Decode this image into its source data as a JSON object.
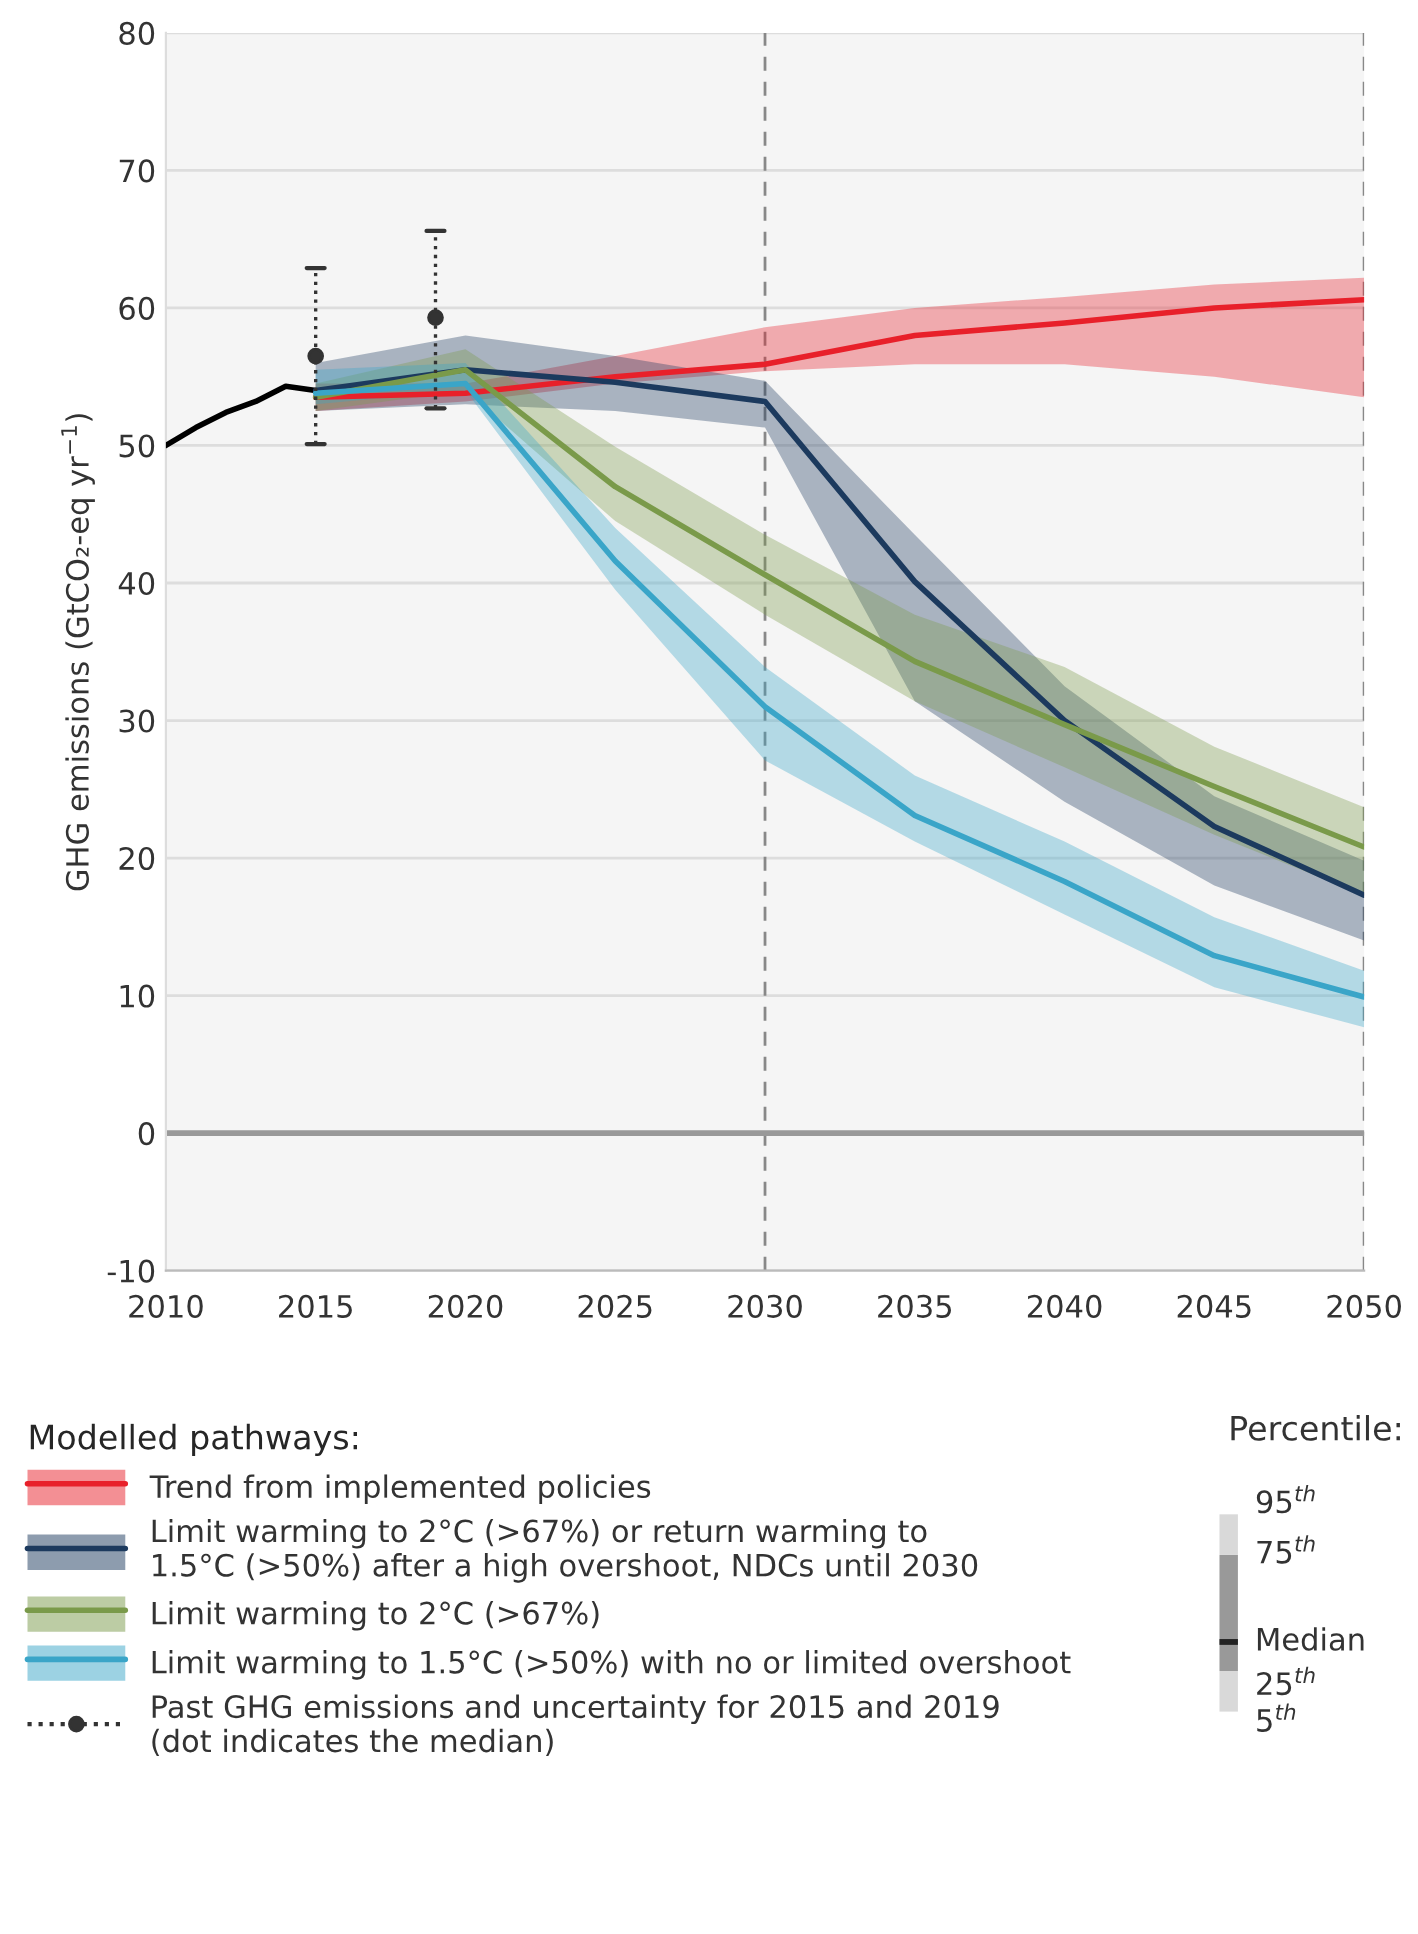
{
  "chart_data": {
    "type": "line",
    "ylabel": "GHG emissions (GtCO₂-eq yr$^{−1}$)",
    "legend_title": "Modelled pathways:",
    "xlim": [
      2010,
      2050
    ],
    "ylim": [
      -10,
      80
    ],
    "xticks": [
      2010,
      2015,
      2020,
      2025,
      2030,
      2035,
      2040,
      2045,
      2050
    ],
    "yticks": [
      -10,
      0,
      10,
      20,
      30,
      40,
      50,
      60,
      70,
      80
    ],
    "grid": "y",
    "legend": "bottom left",
    "series": [
      {
        "color": "#000000",
        "x": [
          2010,
          2011,
          2012,
          2013,
          2014,
          2015
        ],
        "values": [
          50,
          51.3,
          52.4,
          53.2,
          54.3,
          54
        ]
      },
      {
        "type": "line",
        "name": "Trend from implemented policies",
        "color": "#e8202a",
        "x": [
          2015,
          2020,
          2025,
          2030,
          2035,
          2040,
          2045,
          2050
        ],
        "values": [
          53.5,
          53.8,
          55,
          55.9,
          58.0,
          58.9,
          60.0,
          60.6
        ],
        "lower": [
          52.5,
          53.2,
          54.5,
          55.4,
          55.9,
          55.9,
          55.0,
          53.5
        ],
        "upper": [
          54.5,
          54.5,
          56.5,
          58.6,
          60.0,
          60.8,
          61.7,
          62.2
        ]
      },
      {
        "type": "line",
        "name": "Limit warming to 2°C (>67%) or return warming to\n1.5°C (>50%) after a high overshoot, NDCs until 2030",
        "color": "#1c3a5e",
        "x": [
          2015,
          2020,
          2025,
          2030,
          2035,
          2040,
          2045,
          2050
        ],
        "values": [
          54,
          55.5,
          54.6,
          53.2,
          40.1,
          30.0,
          22.3,
          17.3
        ],
        "lower": [
          52.5,
          53,
          52.5,
          51.3,
          31.4,
          24.1,
          18.0,
          14.0
        ],
        "upper": [
          56,
          58,
          56.5,
          54.7,
          43.5,
          32.5,
          24.5,
          19.8
        ]
      },
      {
        "type": "line",
        "name": "Limit warming to 2°C (>67%)",
        "color": "#7a9a4a",
        "x": [
          2015,
          2020,
          2025,
          2030,
          2035,
          2040,
          2045,
          2050
        ],
        "values": [
          53.5,
          55.5,
          47.0,
          40.6,
          34.3,
          29.7,
          25.2,
          20.8
        ],
        "lower": [
          52.5,
          54,
          44.5,
          37.7,
          31.4,
          26.6,
          21.7,
          17.3
        ],
        "upper": [
          54.5,
          57,
          49.9,
          43.5,
          37.7,
          33.9,
          28.1,
          23.7
        ]
      },
      {
        "type": "line",
        "name": "Limit warming to 1.5°C (>50%) with no or limited overshoot",
        "color": "#3aa5c8",
        "x": [
          2015,
          2020,
          2025,
          2030,
          2035,
          2040,
          2045,
          2050
        ],
        "values": [
          53.8,
          54.5,
          41.6,
          31.0,
          23.1,
          18.3,
          12.9,
          9.9
        ],
        "lower": [
          53,
          54,
          39.5,
          27.1,
          21.2,
          15.9,
          10.6,
          7.7
        ],
        "upper": [
          55.5,
          56,
          44,
          33.9,
          26.0,
          21.2,
          15.7,
          11.8
        ]
      },
      {
        "type": "scatter",
        "name": "Past GHG emissions and uncertainty for 2015 and 2019\n(dot indicates the median)",
        "color": "#333333",
        "marker": "circle",
        "line_style": "dotted",
        "x": [
          2015,
          2019
        ],
        "values": [
          56.5,
          59.3
        ],
        "errors": [
          [
            50.1,
            62.9
          ],
          [
            52.7,
            65.6
          ]
        ]
      }
    ],
    "ref_lines": [
      {
        "axis": "x",
        "value": 2030,
        "color": "#888888",
        "line_style": "dashed"
      },
      {
        "axis": "x",
        "value": 2050,
        "color": "#888888",
        "line_style": "dashed"
      },
      {
        "axis": "y",
        "value": 0,
        "color": "#999999",
        "line_style": "solid"
      }
    ],
    "annotations": [
      "Percentile:",
      "95$^{th}$",
      "75$^{th}$",
      "Median",
      "25$^{th}$",
      "5$^{th}$"
    ]
  }
}
